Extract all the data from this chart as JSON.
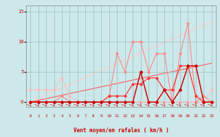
{
  "x": [
    0,
    1,
    2,
    3,
    4,
    5,
    6,
    7,
    8,
    9,
    10,
    11,
    12,
    13,
    14,
    15,
    16,
    17,
    18,
    19,
    20,
    21,
    22,
    23
  ],
  "line_light_pink": [
    2,
    2,
    2,
    2,
    4,
    1,
    0,
    0,
    0,
    0,
    0,
    0,
    0,
    0,
    0,
    0,
    0,
    0,
    0,
    0,
    0,
    0,
    0,
    2
  ],
  "line_pink": [
    0,
    0,
    0,
    0,
    1,
    0,
    0,
    0,
    0,
    0,
    1,
    8,
    5,
    10,
    10,
    5,
    8,
    8,
    0,
    8,
    13,
    0,
    1,
    0
  ],
  "line_dark_red": [
    0,
    0,
    0,
    0,
    0,
    0,
    0,
    0,
    0,
    0,
    0,
    0,
    0,
    0,
    5,
    0,
    0,
    2,
    0,
    2,
    6,
    6,
    0,
    0
  ],
  "line_red": [
    0,
    0,
    0,
    0,
    0,
    0,
    0,
    0,
    0,
    0,
    1,
    1,
    1,
    3,
    3,
    4,
    4,
    2,
    2,
    6,
    6,
    1,
    0,
    0
  ],
  "trend_low": [
    0,
    0.28,
    0.56,
    0.84,
    1.12,
    1.4,
    1.68,
    1.96,
    2.24,
    2.52,
    2.8,
    3.08,
    3.36,
    3.64,
    3.92,
    4.2,
    4.48,
    4.76,
    5.04,
    5.32,
    5.6,
    5.88,
    6.16,
    6.44
  ],
  "trend_high": [
    0,
    0.58,
    1.16,
    1.74,
    2.32,
    2.9,
    3.48,
    4.06,
    4.64,
    5.22,
    5.8,
    6.38,
    6.96,
    7.54,
    8.12,
    8.7,
    9.28,
    9.86,
    10.44,
    11.02,
    11.6,
    12.18,
    12.76,
    13.34
  ],
  "bg_color": "#cce8ea",
  "grid_color": "#99bbbb",
  "color_light_pink": "#ffbbbb",
  "color_pink": "#ff8888",
  "color_dark_red": "#cc0000",
  "color_red": "#ff3333",
  "color_trend_low": "#ff6666",
  "color_trend_high": "#ffcccc",
  "xlabel": "Vent moyen/en rafales ( km/h )",
  "yticks": [
    0,
    5,
    10,
    15
  ],
  "xlim": [
    0,
    23
  ],
  "ylim": [
    -0.8,
    16
  ]
}
